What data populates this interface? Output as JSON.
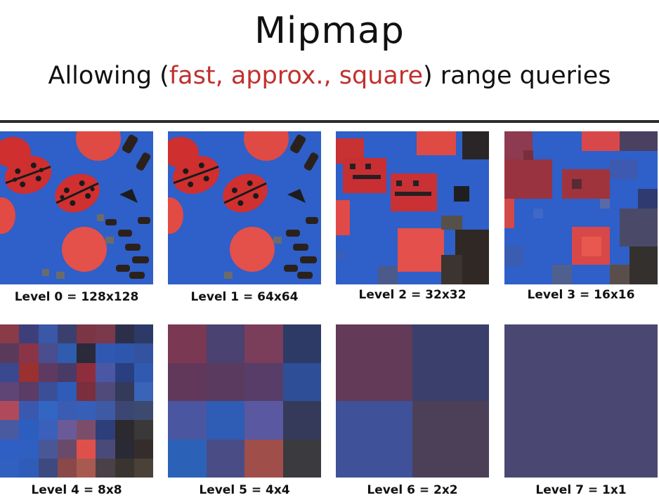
{
  "title": "Mipmap",
  "subtitle": {
    "before": "Allowing (",
    "highlight": "fast, approx., square",
    "after": ") range queries"
  },
  "levels": [
    {
      "label": "Level 0 = 128x128"
    },
    {
      "label": "Level 1 = 64x64"
    },
    {
      "label": "Level 2 = 32x32"
    },
    {
      "label": "Level 3 = 16x16"
    },
    {
      "label": "Level 4 = 8x8"
    },
    {
      "label": "Level 5 = 4x4"
    },
    {
      "label": "Level 6 = 2x2"
    },
    {
      "label": "Level 7 = 1x1"
    }
  ],
  "colors": {
    "accent": "#c0312e",
    "background_blue": "#2f5fc8",
    "level7": "#4a4872"
  },
  "level4_grid": [
    [
      "#8a3b48",
      "#3e3f7a",
      "#3a57a8",
      "#3b3f6e",
      "#7b3545",
      "#7a3a4b",
      "#2d2f4a",
      "#2d3a68"
    ],
    [
      "#5a3a5a",
      "#8a3448",
      "#4a4d8e",
      "#2f5cad",
      "#2a2a3a",
      "#3158b0",
      "#2f56ad",
      "#3352a0"
    ],
    [
      "#3a4890",
      "#9a3030",
      "#5e3a62",
      "#4a3a66",
      "#8e2e3c",
      "#4a58a4",
      "#2a3f80",
      "#2f5ab0"
    ],
    [
      "#5f4476",
      "#5a3c66",
      "#3b4f99",
      "#2e5cb8",
      "#7a2e3e",
      "#4f4a7a",
      "#333a5a",
      "#3a64b8"
    ],
    [
      "#b04a5a",
      "#3a58b0",
      "#3266c2",
      "#3a5cb2",
      "#355fb8",
      "#3f5aa4",
      "#3c4672",
      "#3d4a70"
    ],
    [
      "#4a5aa0",
      "#2c5ec0",
      "#3a60bb",
      "#6a5a98",
      "#7a4e6a",
      "#2d3e7a",
      "#2c2a2e",
      "#3a3838"
    ],
    [
      "#2f5ec4",
      "#305fc2",
      "#4a5796",
      "#6a4a6a",
      "#e0504a",
      "#4a4a7a",
      "#2a2a34",
      "#352c2c"
    ],
    [
      "#3060c0",
      "#2f5cb8",
      "#3d4a80",
      "#8a4848",
      "#a85a50",
      "#4a4048",
      "#3a3430",
      "#4a4238"
    ]
  ],
  "level5_grid": [
    [
      "#7a3852",
      "#4a4270",
      "#7a3e5a",
      "#2e3a66"
    ],
    [
      "#61385a",
      "#5a3a5e",
      "#573d68",
      "#2e4e98"
    ],
    [
      "#4a56a0",
      "#2f5cb4",
      "#5a58a0",
      "#353a5a"
    ],
    [
      "#2b62b8",
      "#4a4c86",
      "#a04e4a",
      "#3b3a3e"
    ]
  ],
  "level6_grid": [
    [
      "#633a58",
      "#3b3f6b"
    ],
    [
      "#3f5198",
      "#4c4058"
    ]
  ]
}
